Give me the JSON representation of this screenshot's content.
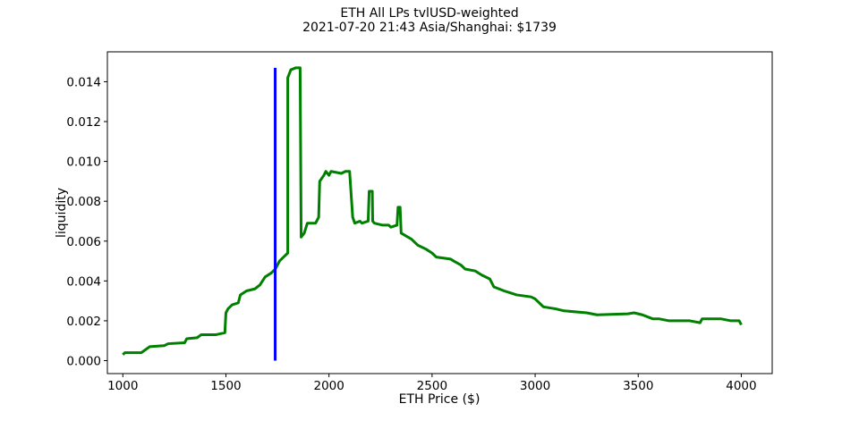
{
  "chart_data": {
    "type": "line",
    "title": "ETH All LPs tvlUSD-weighted",
    "subtitle": "2021-07-20 21:43 Asia/Shanghai: $1739",
    "xlabel": "ETH Price ($)",
    "ylabel": "liquidity",
    "xlim": [
      925,
      4150
    ],
    "ylim": [
      -0.00065,
      0.0155
    ],
    "x_ticks": [
      1000,
      1500,
      2000,
      2500,
      3000,
      3500,
      4000
    ],
    "x_tick_labels": [
      "1000",
      "1500",
      "2000",
      "2500",
      "3000",
      "3500",
      "4000"
    ],
    "y_ticks": [
      0,
      0.002,
      0.004,
      0.006,
      0.008,
      0.01,
      0.012,
      0.014
    ],
    "y_tick_labels": [
      "0.000",
      "0.002",
      "0.004",
      "0.006",
      "0.008",
      "0.010",
      "0.012",
      "0.014"
    ],
    "grid": false,
    "series": [
      {
        "color": "#008000",
        "points": [
          [
            1000,
            0.0003
          ],
          [
            1010,
            0.0004
          ],
          [
            1090,
            0.0004
          ],
          [
            1110,
            0.00055
          ],
          [
            1130,
            0.0007
          ],
          [
            1200,
            0.00075
          ],
          [
            1220,
            0.00085
          ],
          [
            1300,
            0.0009
          ],
          [
            1310,
            0.0011
          ],
          [
            1360,
            0.00115
          ],
          [
            1380,
            0.0013
          ],
          [
            1450,
            0.0013
          ],
          [
            1495,
            0.0014
          ],
          [
            1500,
            0.0024
          ],
          [
            1510,
            0.0026
          ],
          [
            1530,
            0.0028
          ],
          [
            1560,
            0.0029
          ],
          [
            1570,
            0.0033
          ],
          [
            1600,
            0.0035
          ],
          [
            1640,
            0.0036
          ],
          [
            1665,
            0.0038
          ],
          [
            1690,
            0.0042
          ],
          [
            1720,
            0.0044
          ],
          [
            1740,
            0.0046
          ],
          [
            1760,
            0.005
          ],
          [
            1780,
            0.0052
          ],
          [
            1800,
            0.0054
          ],
          [
            1800,
            0.0142
          ],
          [
            1815,
            0.0146
          ],
          [
            1840,
            0.0147
          ],
          [
            1860,
            0.0147
          ],
          [
            1865,
            0.0062
          ],
          [
            1880,
            0.0064
          ],
          [
            1895,
            0.0069
          ],
          [
            1935,
            0.0069
          ],
          [
            1950,
            0.0072
          ],
          [
            1955,
            0.009
          ],
          [
            1975,
            0.0093
          ],
          [
            1985,
            0.0095
          ],
          [
            2000,
            0.0093
          ],
          [
            2010,
            0.0095
          ],
          [
            2060,
            0.0094
          ],
          [
            2080,
            0.0095
          ],
          [
            2100,
            0.0095
          ],
          [
            2115,
            0.0072
          ],
          [
            2125,
            0.0069
          ],
          [
            2150,
            0.007
          ],
          [
            2160,
            0.0069
          ],
          [
            2190,
            0.007
          ],
          [
            2195,
            0.0085
          ],
          [
            2210,
            0.0085
          ],
          [
            2212,
            0.007
          ],
          [
            2220,
            0.0069
          ],
          [
            2260,
            0.0068
          ],
          [
            2290,
            0.0068
          ],
          [
            2300,
            0.0067
          ],
          [
            2330,
            0.0068
          ],
          [
            2335,
            0.0077
          ],
          [
            2345,
            0.0077
          ],
          [
            2350,
            0.0064
          ],
          [
            2400,
            0.0061
          ],
          [
            2430,
            0.0058
          ],
          [
            2470,
            0.0056
          ],
          [
            2500,
            0.0054
          ],
          [
            2520,
            0.0052
          ],
          [
            2590,
            0.0051
          ],
          [
            2605,
            0.005
          ],
          [
            2640,
            0.0048
          ],
          [
            2660,
            0.0046
          ],
          [
            2710,
            0.0045
          ],
          [
            2740,
            0.0043
          ],
          [
            2780,
            0.0041
          ],
          [
            2800,
            0.0037
          ],
          [
            2850,
            0.0035
          ],
          [
            2880,
            0.0034
          ],
          [
            2910,
            0.0033
          ],
          [
            2980,
            0.0032
          ],
          [
            3000,
            0.0031
          ],
          [
            3020,
            0.0029
          ],
          [
            3040,
            0.0027
          ],
          [
            3100,
            0.0026
          ],
          [
            3140,
            0.0025
          ],
          [
            3250,
            0.0024
          ],
          [
            3300,
            0.0023
          ],
          [
            3450,
            0.00235
          ],
          [
            3480,
            0.0024
          ],
          [
            3520,
            0.0023
          ],
          [
            3570,
            0.0021
          ],
          [
            3600,
            0.0021
          ],
          [
            3650,
            0.002
          ],
          [
            3750,
            0.002
          ],
          [
            3800,
            0.0019
          ],
          [
            3810,
            0.0021
          ],
          [
            3900,
            0.0021
          ],
          [
            3950,
            0.002
          ],
          [
            3990,
            0.002
          ],
          [
            4000,
            0.0018
          ]
        ]
      },
      {
        "color": "#0000ff",
        "points": [
          [
            1739,
            0
          ],
          [
            1739,
            0.0147
          ]
        ]
      }
    ]
  }
}
